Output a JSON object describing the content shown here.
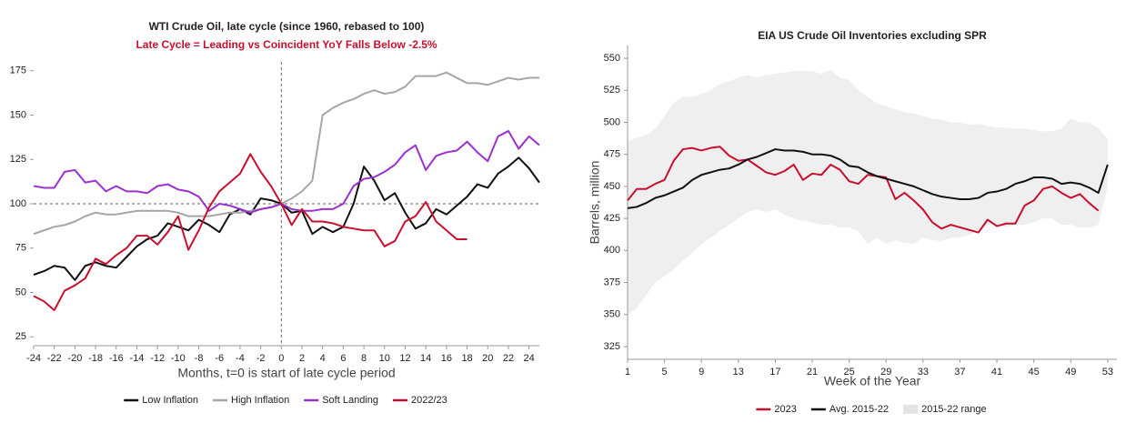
{
  "chart_data": [
    {
      "type": "line",
      "title": "WTI Crude Oil, late cycle (since 1960, rebased to 100)",
      "subtitle": "Late Cycle = Leading vs Coincident YoY Falls Below -2.5%",
      "xlabel": "Months, t=0 is start of late cycle period",
      "x": [
        -24,
        -23,
        -22,
        -21,
        -20,
        -19,
        -18,
        -17,
        -16,
        -15,
        -14,
        -13,
        -12,
        -11,
        -10,
        -9,
        -8,
        -7,
        -6,
        -5,
        -4,
        -3,
        -2,
        -1,
        0,
        1,
        2,
        3,
        4,
        5,
        6,
        7,
        8,
        9,
        10,
        11,
        12,
        13,
        14,
        15,
        16,
        17,
        18,
        19,
        20,
        21,
        22,
        23,
        24,
        25
      ],
      "xlim": [
        -24,
        25
      ],
      "xticks": [
        -24,
        -22,
        -20,
        -18,
        -16,
        -14,
        -12,
        -10,
        -8,
        -6,
        -4,
        -2,
        0,
        2,
        4,
        6,
        8,
        10,
        12,
        14,
        16,
        18,
        20,
        22,
        24
      ],
      "ylim": [
        20,
        180
      ],
      "yticks": [
        25,
        50,
        75,
        100,
        125,
        150,
        175
      ],
      "vlines": [
        0
      ],
      "hlines": [
        100
      ],
      "legend": "bottom",
      "series": [
        {
          "name": "Low Inflation",
          "color": "#111111",
          "values": [
            60,
            62,
            65,
            64,
            57,
            65,
            67,
            65,
            64,
            70,
            76,
            80,
            82,
            89,
            87,
            85,
            91,
            88,
            84,
            94,
            97,
            94,
            103,
            102,
            100,
            95,
            96,
            83,
            87,
            84,
            87,
            100,
            121,
            113,
            102,
            106,
            95,
            86,
            89,
            97,
            94,
            99,
            104,
            111,
            109,
            117,
            121,
            126,
            120,
            112
          ]
        },
        {
          "name": "High Inflation",
          "color": "#a6a6a6",
          "values": [
            83,
            85,
            87,
            88,
            90,
            93,
            95,
            94,
            94,
            95,
            96,
            96,
            96,
            96,
            95,
            93,
            93,
            93,
            94,
            95,
            95,
            96,
            97,
            98,
            100,
            103,
            107,
            113,
            150,
            154,
            157,
            159,
            162,
            164,
            162,
            163,
            166,
            172,
            172,
            172,
            174,
            171,
            168,
            168,
            167,
            169,
            171,
            170,
            171,
            171
          ]
        },
        {
          "name": "Soft Landing",
          "color": "#9b30d0",
          "values": [
            110,
            109,
            109,
            118,
            119,
            112,
            113,
            107,
            110,
            107,
            107,
            106,
            110,
            111,
            108,
            107,
            104,
            96,
            100,
            99,
            97,
            95,
            97,
            98,
            100,
            97,
            96,
            96,
            97,
            97,
            100,
            110,
            114,
            115,
            118,
            122,
            129,
            133,
            119,
            127,
            129,
            130,
            135,
            129,
            124,
            138,
            141,
            131,
            138,
            133
          ]
        },
        {
          "name": "2022/23",
          "color": "#c8102e",
          "values": [
            48,
            45,
            40,
            51,
            54,
            58,
            69,
            66,
            71,
            75,
            82,
            82,
            77,
            84,
            93,
            74,
            85,
            98,
            107,
            112,
            117,
            128,
            118,
            110,
            100,
            88,
            97,
            90,
            90,
            89,
            87,
            86,
            85,
            85,
            76,
            79,
            90,
            93,
            101,
            90,
            85,
            80,
            80,
            null,
            null,
            null,
            null,
            null,
            null,
            null
          ]
        }
      ]
    },
    {
      "type": "line",
      "title": "EIA US Crude Oil Inventories excluding SPR",
      "xlabel": "Week of the Year",
      "ylabel": "Barrels, million",
      "x": [
        1,
        2,
        3,
        4,
        5,
        6,
        7,
        8,
        9,
        10,
        11,
        12,
        13,
        14,
        15,
        16,
        17,
        18,
        19,
        20,
        21,
        22,
        23,
        24,
        25,
        26,
        27,
        28,
        29,
        30,
        31,
        32,
        33,
        34,
        35,
        36,
        37,
        38,
        39,
        40,
        41,
        42,
        43,
        44,
        45,
        46,
        47,
        48,
        49,
        50,
        51,
        52,
        53
      ],
      "xlim": [
        1,
        54
      ],
      "xticks": [
        1,
        5,
        9,
        13,
        17,
        21,
        25,
        29,
        33,
        37,
        41,
        45,
        49,
        53
      ],
      "ylim": [
        315,
        560
      ],
      "yticks": [
        325,
        350,
        375,
        400,
        425,
        450,
        475,
        500,
        525,
        550
      ],
      "legend": "bottom",
      "series": [
        {
          "name": "2023",
          "color": "#c8102e",
          "values": [
            439,
            448,
            448,
            452,
            455,
            470,
            479,
            480,
            478,
            480,
            481,
            474,
            470,
            471,
            466,
            461,
            459,
            462,
            467,
            455,
            460,
            459,
            467,
            463,
            454,
            452,
            459,
            458,
            457,
            440,
            445,
            439,
            432,
            422,
            417,
            420,
            418,
            416,
            414,
            424,
            419,
            421,
            421,
            435,
            439,
            448,
            450,
            445,
            441,
            444,
            437,
            431,
            null
          ]
        },
        {
          "name": "Avg. 2015-22",
          "color": "#111111",
          "values": [
            433,
            434,
            437,
            441,
            443,
            446,
            449,
            455,
            459,
            461,
            463,
            464,
            467,
            471,
            473,
            476,
            479,
            478,
            478,
            477,
            475,
            475,
            474,
            471,
            466,
            465,
            461,
            458,
            456,
            454,
            452,
            450,
            447,
            444,
            442,
            441,
            440,
            440,
            441,
            445,
            446,
            448,
            452,
            454,
            457,
            457,
            456,
            452,
            453,
            452,
            449,
            445,
            467
          ]
        },
        {
          "name": "2015-22 range",
          "color": "#efefef",
          "kind": "band",
          "values": [
            485,
            488,
            490,
            495,
            505,
            515,
            520,
            520,
            522,
            525,
            530,
            532,
            535,
            537,
            535,
            537,
            538,
            539,
            540,
            540,
            540,
            538,
            541,
            535,
            533,
            525,
            520,
            515,
            513,
            510,
            508,
            507,
            505,
            503,
            502,
            500,
            500,
            498,
            499,
            497,
            496,
            496,
            495,
            495,
            494,
            493,
            493,
            495,
            503,
            500,
            500,
            495,
            487
          ],
          "lower": [
            350,
            355,
            365,
            375,
            380,
            385,
            392,
            398,
            405,
            410,
            415,
            420,
            425,
            430,
            432,
            430,
            432,
            428,
            425,
            423,
            422,
            420,
            420,
            418,
            418,
            415,
            405,
            410,
            405,
            408,
            406,
            405,
            410,
            408,
            407,
            410,
            410,
            412,
            416,
            420,
            420,
            418,
            420,
            420,
            422,
            425,
            425,
            420,
            420,
            418,
            418,
            420,
            450
          ]
        }
      ]
    }
  ]
}
